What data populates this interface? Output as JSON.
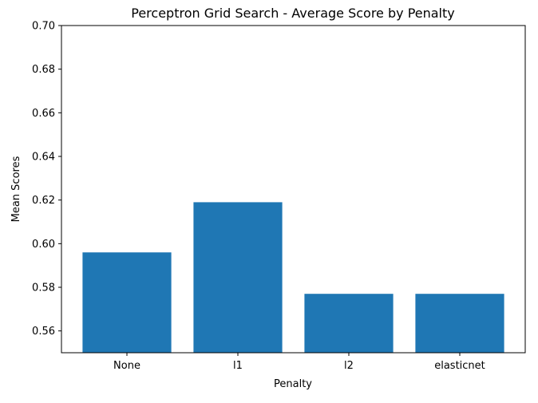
{
  "chart_data": {
    "type": "bar",
    "title": "Perceptron Grid Search - Average Score by Penalty",
    "xlabel": "Penalty",
    "ylabel": "Mean Scores",
    "categories": [
      "None",
      "l1",
      "l2",
      "elasticnet"
    ],
    "values": [
      0.596,
      0.619,
      0.577,
      0.577
    ],
    "ylim": [
      0.55,
      0.7
    ],
    "yticks": [
      "0.56",
      "0.58",
      "0.60",
      "0.62",
      "0.64",
      "0.66",
      "0.68",
      "0.70"
    ],
    "grid": false,
    "legend": "none",
    "bar_color": "#1f77b4"
  }
}
